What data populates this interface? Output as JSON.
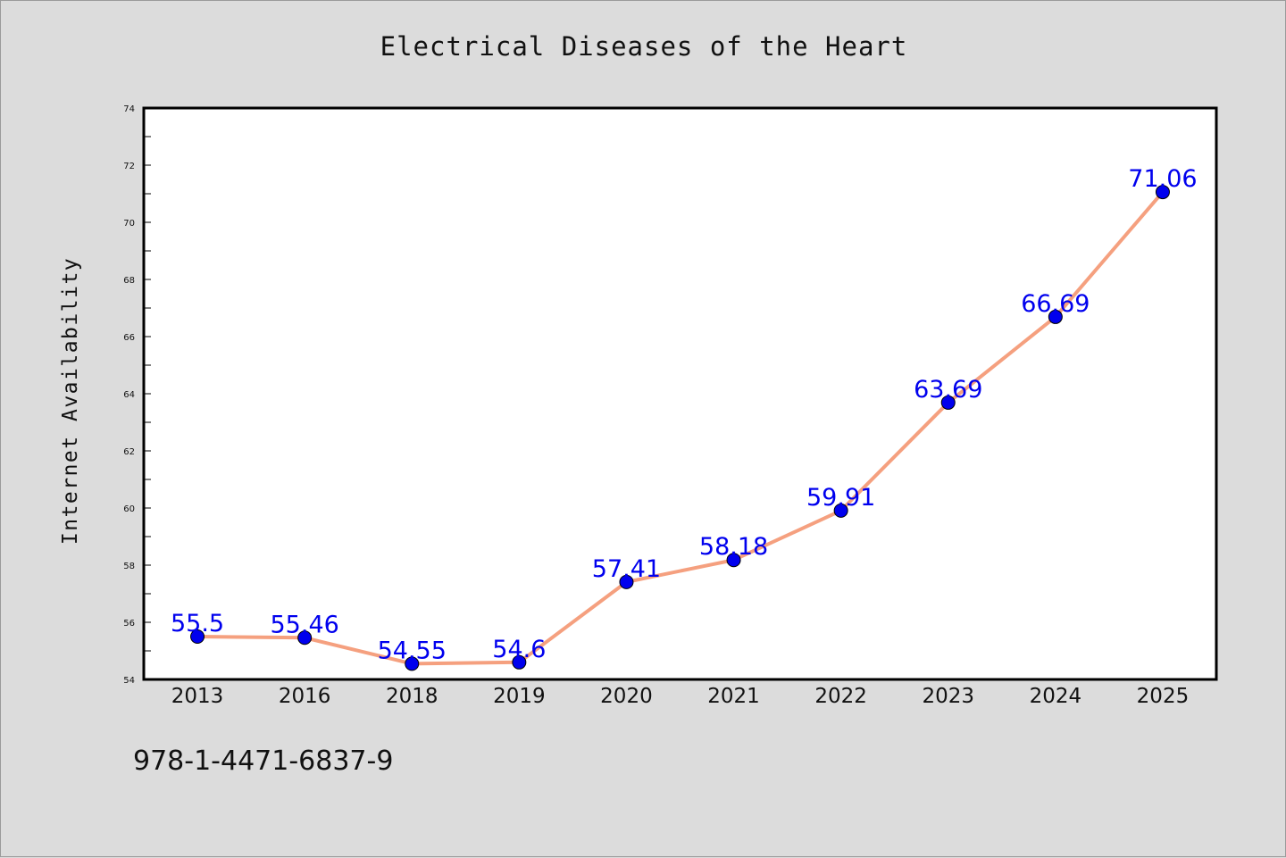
{
  "chart_data": {
    "type": "line",
    "title": "Electrical Diseases of the Heart",
    "ylabel": "Internet Availability",
    "xlabel": "",
    "categories": [
      "2013",
      "2016",
      "2018",
      "2019",
      "2020",
      "2021",
      "2022",
      "2023",
      "2024",
      "2025"
    ],
    "series": [
      {
        "values": [
          55.5,
          55.46,
          54.55,
          54.6,
          57.41,
          58.18,
          59.91,
          63.69,
          66.69,
          71.06
        ],
        "data_labels": [
          "55.5",
          "55.46",
          "54.55",
          "54.6",
          "57.41",
          "58.18",
          "59.91",
          "63.69",
          "66.69",
          "71.06"
        ],
        "line_color": "#f5a07f",
        "marker_color": "#0000ee"
      }
    ],
    "ylim": [
      54,
      74
    ],
    "yticks": [
      54,
      56,
      58,
      60,
      62,
      64,
      66,
      68,
      70,
      72,
      74
    ],
    "ytick_labels": [
      "54",
      "56",
      "58",
      "60",
      "62",
      "64",
      "66",
      "68",
      "70",
      "72",
      "74"
    ],
    "grid": false,
    "label_color": "#0000ee"
  },
  "footnote": "978-1-4471-6837-9",
  "colors": {
    "background": "#dcdcdc",
    "plot_background": "#ffffff",
    "axis": "#000000"
  }
}
